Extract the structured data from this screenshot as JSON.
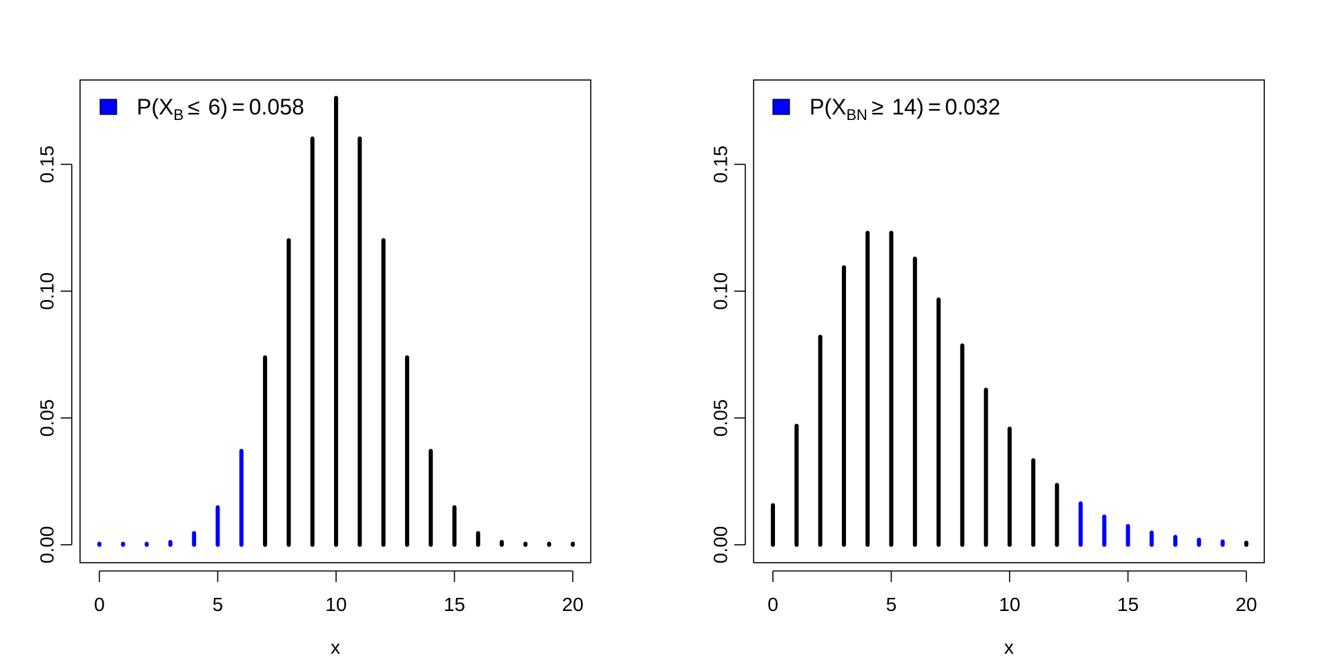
{
  "chart_data": [
    {
      "type": "bar",
      "xlabel": "x",
      "ylabel": "",
      "xlim": [
        0,
        20
      ],
      "ylim": [
        0,
        0.1762
      ],
      "xticks": [
        "0",
        "5",
        "10",
        "15",
        "20"
      ],
      "yticks": [
        "0.00",
        "0.05",
        "0.10",
        "0.15"
      ],
      "grid": false,
      "legend_position": "top-left",
      "legend": {
        "prefix": "P(X",
        "subscript": "B",
        "relation": "≤",
        "threshold": "6",
        "close": ")",
        "equals": "=",
        "value": "0.058",
        "color": "#0000ff"
      },
      "x": [
        0,
        1,
        2,
        3,
        4,
        5,
        6,
        7,
        8,
        9,
        10,
        11,
        12,
        13,
        14,
        15,
        16,
        17,
        18,
        19,
        20
      ],
      "values": [
        0.0,
        0.0,
        0.0002,
        0.0011,
        0.0046,
        0.0148,
        0.037,
        0.0739,
        0.1201,
        0.1602,
        0.1762,
        0.1602,
        0.1201,
        0.0739,
        0.037,
        0.0148,
        0.0046,
        0.0011,
        0.0002,
        0.0,
        0.0
      ],
      "highlight_x": [
        0,
        1,
        2,
        3,
        4,
        5,
        6
      ],
      "colors": {
        "highlight": "#0000ff",
        "normal": "#000000"
      }
    },
    {
      "type": "bar",
      "xlabel": "x",
      "ylabel": "",
      "xlim": [
        0,
        20
      ],
      "ylim": [
        0,
        0.1762
      ],
      "xticks": [
        "0",
        "5",
        "10",
        "15",
        "20"
      ],
      "yticks": [
        "0.00",
        "0.05",
        "0.10",
        "0.15"
      ],
      "grid": false,
      "legend_position": "top-left",
      "legend": {
        "prefix": "P(X",
        "subscript": "BN",
        "relation": "≥",
        "threshold": "14",
        "close": ")",
        "equals": "=",
        "value": "0.032",
        "color": "#0000ff"
      },
      "x": [
        0,
        1,
        2,
        3,
        4,
        5,
        6,
        7,
        8,
        9,
        10,
        11,
        12,
        13,
        14,
        15,
        16,
        17,
        18,
        19,
        20
      ],
      "values": [
        0.0156,
        0.0469,
        0.082,
        0.1094,
        0.123,
        0.123,
        0.1128,
        0.0967,
        0.0786,
        0.0611,
        0.0458,
        0.0333,
        0.0236,
        0.0163,
        0.0111,
        0.0074,
        0.0048,
        0.0031,
        0.002,
        0.0013,
        0.0008
      ],
      "highlight_x": [
        13,
        14,
        15,
        16,
        17,
        18,
        19
      ],
      "colors": {
        "highlight": "#0000ff",
        "normal": "#000000"
      }
    }
  ]
}
